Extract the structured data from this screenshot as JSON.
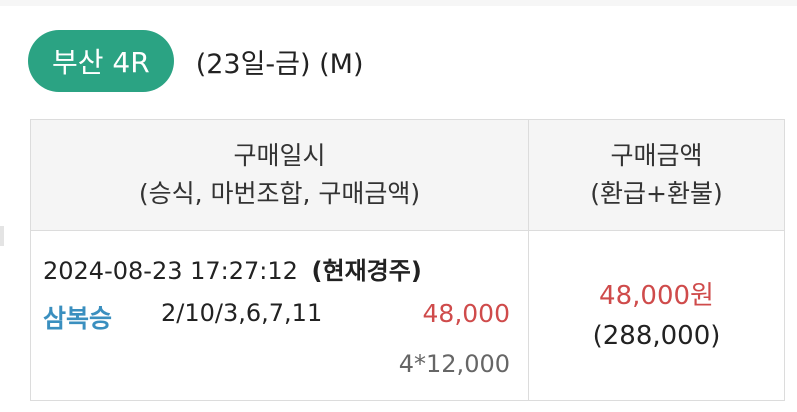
{
  "race": {
    "badge": "부산 4R",
    "meta": "(23일-금) (M)"
  },
  "table": {
    "headers": {
      "left_line1": "구매일시",
      "left_line2": "(승식, 마번조합, 구매금액)",
      "right_line1": "구매금액",
      "right_line2": "(환급+환불)"
    },
    "row": {
      "purchase_time": "2024-08-23 17:27:12",
      "current_race": "(현재경주)",
      "bet_type": "삼복승",
      "combination": "2/10/3,6,7,11",
      "amount": "48,000",
      "detail": "4*12,000",
      "total": "48,000원",
      "refund": "(288,000)"
    }
  },
  "colors": {
    "badge": "#2ba383",
    "amount_red": "#cf4b4b",
    "bet_type_blue": "#3a8fbf"
  }
}
